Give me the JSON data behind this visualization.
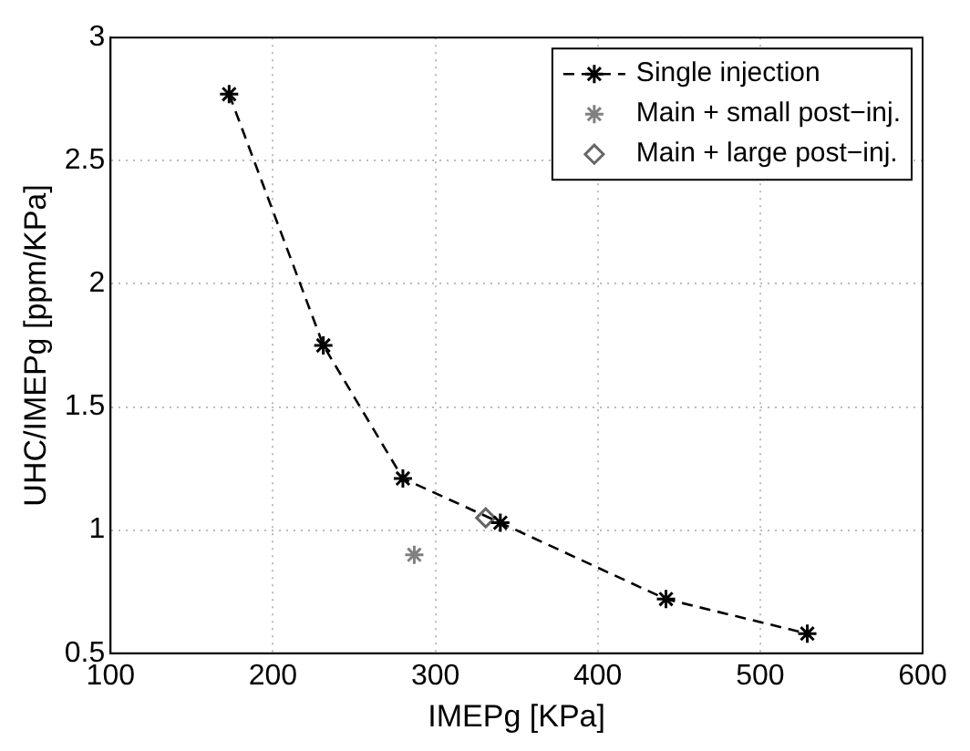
{
  "chart_data": {
    "type": "line",
    "xlabel": "IMEPg [KPa]",
    "ylabel": "UHC/IMEPg [ppm/KPa]",
    "xlim": [
      100,
      600
    ],
    "xticks": [
      100,
      200,
      300,
      400,
      500,
      600
    ],
    "ylim": [
      0.5,
      3
    ],
    "yticks": [
      0.5,
      1,
      1.5,
      2,
      2.5,
      3
    ],
    "grid": true,
    "legend": "top right",
    "series": [
      {
        "name": "Single injection",
        "color": "#000000",
        "marker": "cross",
        "line_style": "dashed",
        "x": [
          173,
          231,
          280,
          340,
          442,
          529
        ],
        "values": [
          2.77,
          1.75,
          1.21,
          1.03,
          0.72,
          0.58
        ]
      },
      {
        "name": "Main + small post−inj.",
        "type": "scatter",
        "color": "#808080",
        "marker": "cross",
        "x": [
          287
        ],
        "values": [
          0.9
        ]
      },
      {
        "name": "Main + large post−inj.",
        "type": "scatter",
        "color": "#666666",
        "marker": "diamond",
        "x": [
          331
        ],
        "values": [
          1.05
        ]
      }
    ]
  }
}
